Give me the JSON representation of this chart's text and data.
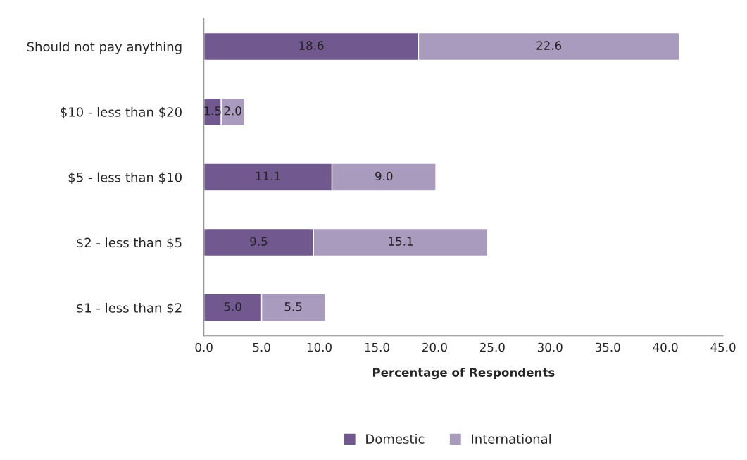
{
  "chart_data": {
    "type": "bar",
    "orientation": "horizontal",
    "stacked": true,
    "xlabel": "Percentage of Respondents",
    "categories": [
      "Should not pay anything",
      "$10 - less than $20",
      "$5 - less than $10",
      "$2 - less than $5",
      "$1 - less than $2"
    ],
    "series": [
      {
        "name": "Domestic",
        "color": "#71588f",
        "values": [
          18.6,
          1.5,
          11.1,
          9.5,
          5.0
        ],
        "value_labels": [
          "18.6",
          "1.5",
          "11.1",
          "9.5",
          "5.0"
        ]
      },
      {
        "name": "International",
        "color": "#a99bbd",
        "values": [
          22.6,
          2.0,
          9.0,
          15.1,
          5.5
        ],
        "value_labels": [
          "22.6",
          "2.0",
          "9.0",
          "15.1",
          "5.5"
        ]
      }
    ],
    "xlim": [
      0,
      45
    ],
    "xticks": [
      {
        "value": 0,
        "label": "0.0"
      },
      {
        "value": 5,
        "label": "5.0"
      },
      {
        "value": 10,
        "label": "10.0"
      },
      {
        "value": 15,
        "label": "15.0"
      },
      {
        "value": 20,
        "label": "20.0"
      },
      {
        "value": 25,
        "label": "25.0"
      },
      {
        "value": 30,
        "label": "30.0"
      },
      {
        "value": 35,
        "label": "35.0"
      },
      {
        "value": 40,
        "label": "40.0"
      },
      {
        "value": 45,
        "label": "45.0"
      }
    ],
    "grid": false,
    "legend": "bottom"
  }
}
